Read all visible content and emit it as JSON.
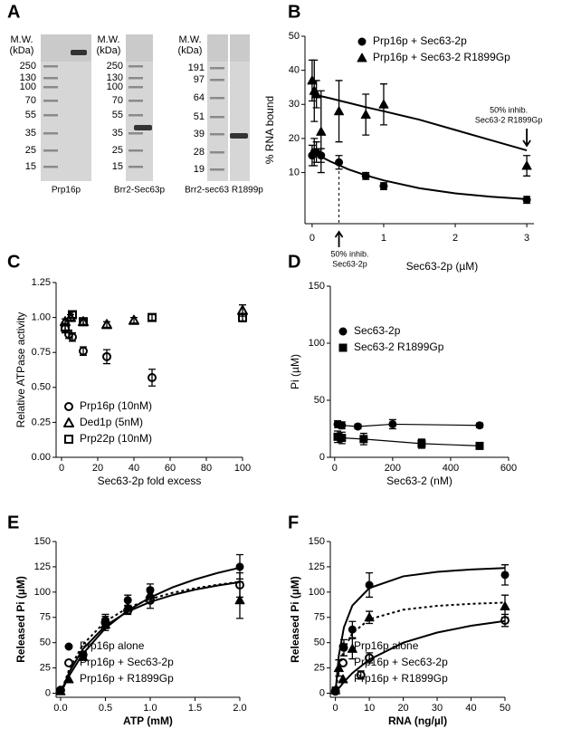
{
  "panel_labels": [
    "A",
    "B",
    "C",
    "D",
    "E",
    "F"
  ],
  "gels": [
    {
      "header": [
        "M.W.",
        "(kDa)"
      ],
      "markers": [
        250,
        130,
        100,
        70,
        55,
        35,
        25,
        15
      ],
      "lane": "Prp16p"
    },
    {
      "header": [
        "M.W.",
        "(kDa)"
      ],
      "markers": [
        250,
        130,
        100,
        70,
        55,
        35,
        25,
        15
      ],
      "lane": "Brr2-Sec63p"
    },
    {
      "header": [
        "M.W.",
        "(kDa)"
      ],
      "markers": [
        191,
        97,
        64,
        51,
        39,
        28,
        19
      ],
      "lane": "Brr2-sec63 R1899p"
    }
  ],
  "chart_data": [
    {
      "type": "scatter",
      "ylabel": "% RNA bound",
      "xlabel": "Sec63-2p (µM)",
      "xlim": [
        -0.1,
        3.1
      ],
      "ylim": [
        -5,
        50
      ],
      "xticks": [
        0,
        1,
        2,
        3
      ],
      "yticks": [
        10,
        20,
        30,
        40,
        50
      ],
      "legend": "upper right",
      "series": [
        {
          "name": "Prp16p + Sec63-2p",
          "marker": "circle",
          "fill": "#000",
          "color": "#000",
          "x": [
            0,
            0.03,
            0.06,
            0.125,
            0.375,
            0.75,
            1,
            3
          ],
          "values": [
            15,
            16,
            16,
            15,
            13,
            9,
            6,
            2
          ],
          "errors": [
            3,
            4,
            3,
            2,
            2,
            1,
            1,
            1
          ]
        },
        {
          "name": "Prp16p + Sec63-2 R1899Gp",
          "marker": "triangle",
          "fill": "#000",
          "color": "#000",
          "x": [
            0,
            0.03,
            0.06,
            0.125,
            0.375,
            0.75,
            1,
            3
          ],
          "values": [
            37,
            34,
            33,
            22,
            28,
            27,
            30,
            12
          ],
          "errors": [
            6,
            9,
            4,
            12,
            9,
            6,
            6,
            3
          ]
        }
      ],
      "fits": [
        {
          "x": [
            0,
            0.25,
            0.5,
            0.75,
            1,
            1.5,
            2,
            2.5,
            3
          ],
          "values": [
            16,
            13.3,
            11,
            9.2,
            7.7,
            5.4,
            3.9,
            2.9,
            2.2
          ],
          "dash": false
        },
        {
          "x": [
            0,
            0.25,
            0.5,
            0.75,
            1,
            1.5,
            2,
            2.5,
            3
          ],
          "values": [
            33,
            31.8,
            30.5,
            29.2,
            28,
            25.5,
            22.5,
            19.5,
            16.5
          ],
          "dash": false
        }
      ],
      "annotations": [
        [
          "50% inhib.",
          "Sec63-2p"
        ],
        [
          "50% inhib.",
          "Sec63-2 R1899Gp"
        ]
      ]
    },
    {
      "type": "scatter",
      "ylabel": "Relative ATPase activity",
      "xlabel": "Sec63-2p fold excess",
      "xlim": [
        -3,
        100
      ],
      "ylim": [
        0,
        1.25
      ],
      "xticks": [
        0,
        20,
        40,
        60,
        80,
        100
      ],
      "yticks": [
        {
          "value": 0,
          "label": "0.00"
        },
        0.25,
        {
          "value": 0.5,
          "label": "0.50"
        },
        0.75,
        {
          "value": 1,
          "label": "1.00"
        },
        1.25
      ],
      "legend": "lower left",
      "series": [
        {
          "name": "Prp16p (10nM)",
          "marker": "circle",
          "fill": "none",
          "color": "#000",
          "x": [
            2,
            4,
            6,
            12,
            25,
            50
          ],
          "values": [
            0.92,
            0.88,
            0.86,
            0.76,
            0.72,
            0.57
          ],
          "errors": [
            0.03,
            0.03,
            0.03,
            0.03,
            0.05,
            0.06
          ]
        },
        {
          "name": "Ded1p (5nM)",
          "marker": "triangle",
          "fill": "none",
          "color": "#000",
          "x": [
            2,
            5,
            12,
            25,
            40,
            100
          ],
          "values": [
            0.97,
            1.0,
            0.97,
            0.95,
            0.98,
            1.05
          ],
          "errors": [
            0.02,
            0.02,
            0.02,
            0.02,
            0.02,
            0.04
          ]
        },
        {
          "name": "Prp22p (10nM)",
          "marker": "square",
          "fill": "none",
          "color": "#000",
          "x": [
            2,
            6,
            12,
            50,
            100
          ],
          "values": [
            0.93,
            1.02,
            0.97,
            1.0,
            1.0
          ],
          "errors": [
            0.02,
            0.02,
            0.02,
            0.02,
            0.03
          ]
        }
      ]
    },
    {
      "type": "scatter",
      "ylabel": "Pi (µM)",
      "xlabel": "Sec63-2 (nM)",
      "xlim": [
        -15,
        600
      ],
      "ylim": [
        0,
        150
      ],
      "xticks": [
        0,
        200,
        400,
        600
      ],
      "yticks": [
        0,
        50,
        100,
        150
      ],
      "legend": "center left",
      "series": [
        {
          "name": "Sec63-2p",
          "marker": "circle",
          "fill": "#000",
          "color": "#000",
          "line": true,
          "x": [
            10,
            25,
            80,
            200,
            500
          ],
          "values": [
            29,
            28,
            27,
            29,
            28
          ],
          "errors": [
            3,
            3,
            2,
            4,
            2
          ]
        },
        {
          "name": "Sec63-2 R1899Gp",
          "marker": "square",
          "fill": "#000",
          "color": "#000",
          "line": true,
          "x": [
            10,
            25,
            100,
            300,
            500
          ],
          "values": [
            18,
            17,
            16,
            12,
            10
          ],
          "errors": [
            5,
            5,
            5,
            4,
            2
          ]
        }
      ]
    },
    {
      "type": "scatter",
      "ylabel": "Released Pi (µM)",
      "xlabel": "ATP (mM)",
      "xlim": [
        -0.05,
        2
      ],
      "ylim": [
        -4,
        150
      ],
      "xticks": [
        {
          "value": 0,
          "label": "0.0"
        },
        0.5,
        {
          "value": 1,
          "label": "1.0"
        },
        1.5,
        {
          "value": 2,
          "label": "2.0"
        }
      ],
      "yticks": [
        0,
        25,
        50,
        75,
        100,
        125,
        150
      ],
      "legend": "lower left",
      "series": [
        {
          "name": "Prp16p alone",
          "marker": "circle",
          "fill": "#000",
          "color": "#000",
          "x": [
            0,
            0.25,
            0.5,
            0.75,
            1,
            2
          ],
          "values": [
            3,
            37,
            72,
            92,
            102,
            125
          ],
          "errors": [
            2,
            4,
            6,
            5,
            6,
            12
          ]
        },
        {
          "name": "Prp16p + Sec63-2p",
          "marker": "circle",
          "fill": "none",
          "color": "#000",
          "x": [
            0,
            0.25,
            0.5,
            0.75,
            1,
            2
          ],
          "values": [
            3,
            38,
            70,
            82,
            92,
            107
          ],
          "errors": [
            2,
            3,
            6,
            4,
            8,
            12
          ]
        },
        {
          "name": "Prp16p + R1899Gp",
          "marker": "triangle",
          "fill": "#000",
          "color": "#000",
          "x": [
            0,
            0.25,
            0.5,
            0.75,
            1,
            2
          ],
          "values": [
            2,
            36,
            68,
            85,
            98,
            92
          ],
          "errors": [
            2,
            3,
            6,
            6,
            6,
            18
          ]
        }
      ],
      "fits": [
        {
          "x": [
            0,
            0.1,
            0.25,
            0.5,
            0.75,
            1,
            1.25,
            1.5,
            1.75,
            2
          ],
          "values": [
            0,
            18,
            39.1,
            64.3,
            81.8,
            94.7,
            104.7,
            112.5,
            118.9,
            124.1
          ],
          "dash": false
        },
        {
          "x": [
            0,
            0.1,
            0.25,
            0.5,
            0.75,
            1,
            1.25,
            1.5,
            1.75,
            2
          ],
          "values": [
            0,
            21.5,
            43.8,
            66.7,
            80.8,
            90.3,
            97.1,
            102.4,
            106.5,
            109.8
          ],
          "dash": false
        },
        {
          "x": [
            0,
            0.1,
            0.25,
            0.5,
            0.75,
            1,
            1.25,
            1.5,
            1.75,
            2
          ],
          "values": [
            0,
            24.5,
            48.2,
            71.1,
            84.4,
            93.1,
            99.3,
            103.8,
            107.3,
            110.2
          ],
          "dash": true
        }
      ]
    },
    {
      "type": "scatter",
      "ylabel": "Released Pi (µM)",
      "xlabel": "RNA (ng/µl)",
      "xlim": [
        -1.5,
        50
      ],
      "ylim": [
        -4,
        150
      ],
      "xticks": [
        0,
        10,
        20,
        30,
        40,
        50
      ],
      "yticks": [
        0,
        25,
        50,
        75,
        100,
        125,
        150
      ],
      "legend": "lower left",
      "series": [
        {
          "name": "Prp16p alone",
          "marker": "circle",
          "fill": "#000",
          "color": "#000",
          "x": [
            0,
            2.5,
            5,
            10,
            50
          ],
          "values": [
            3,
            45,
            63,
            107,
            117
          ],
          "errors": [
            2,
            8,
            8,
            12,
            10
          ]
        },
        {
          "name": "Prp16p + Sec63-2p",
          "marker": "circle",
          "fill": "none",
          "color": "#000",
          "x": [
            0,
            7.5,
            10,
            50
          ],
          "values": [
            2,
            18,
            35,
            72
          ],
          "errors": [
            2,
            4,
            5,
            6
          ]
        },
        {
          "name": "Prp16p + R1899Gp",
          "marker": "triangle",
          "fill": "#000",
          "color": "#000",
          "x": [
            0,
            1,
            5,
            10,
            50
          ],
          "values": [
            3,
            25,
            44,
            75,
            86
          ],
          "errors": [
            3,
            8,
            10,
            6,
            11
          ]
        }
      ],
      "fits": [
        {
          "x": [
            0,
            1,
            2.5,
            5,
            10,
            20,
            30,
            40,
            50
          ],
          "values": [
            0,
            37.1,
            65,
            86.7,
            104,
            115.6,
            120,
            122.4,
            123.8
          ],
          "dash": false
        },
        {
          "x": [
            0,
            1,
            2.5,
            5,
            10,
            20,
            30,
            40,
            50
          ],
          "values": [
            0,
            4.8,
            11.1,
            20,
            33.3,
            50,
            60,
            66.7,
            71.4
          ],
          "dash": false
        },
        {
          "x": [
            0,
            1,
            2.5,
            5,
            10,
            20,
            30,
            40,
            50
          ],
          "values": [
            0,
            23.8,
            43.2,
            59.4,
            73.1,
            82.6,
            86.4,
            88.4,
            89.6
          ],
          "dash": true
        }
      ]
    }
  ]
}
